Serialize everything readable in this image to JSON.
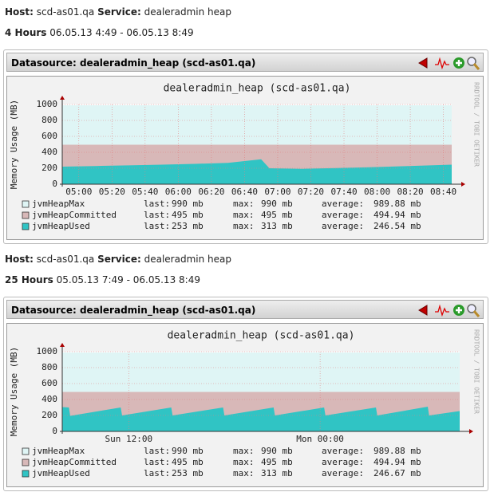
{
  "panels": [
    {
      "host_label": "Host:",
      "host": "scd-as01.qa",
      "service_label": "Service:",
      "service": "dealeradmin heap",
      "range_label": "4 Hours",
      "range": "06.05.13 4:49 - 06.05.13 8:49",
      "datasource": "Datasource: dealeradmin_heap (scd-as01.qa)"
    },
    {
      "host_label": "Host:",
      "host": "scd-as01.qa",
      "service_label": "Service:",
      "service": "dealeradmin heap",
      "range_label": "25 Hours",
      "range": "05.05.13 7:49 - 06.05.13 8:49",
      "datasource": "Datasource: dealeradmin_heap (scd-as01.qa)"
    }
  ],
  "chart_data": [
    {
      "type": "area",
      "title": "dealeradmin_heap (scd-as01.qa)",
      "ylabel": "Memory Usage (MB)",
      "watermark": "RRDTOOL / TOBI OETIKER",
      "x": [
        "04:50",
        "05:10",
        "05:30",
        "05:50",
        "06:10",
        "06:30",
        "06:50",
        "06:55",
        "07:15",
        "07:35",
        "07:55",
        "08:15",
        "08:45"
      ],
      "xlim": [
        "04:50",
        "08:45"
      ],
      "xticks": [
        "05:00",
        "05:20",
        "05:40",
        "06:00",
        "06:20",
        "06:40",
        "07:00",
        "07:20",
        "07:40",
        "08:00",
        "08:20",
        "08:40"
      ],
      "ylim": [
        0,
        1000
      ],
      "yticks": [
        0,
        200,
        400,
        600,
        800,
        1000
      ],
      "grid": true,
      "stat_labels": [
        "last:",
        "max:",
        "average:"
      ],
      "series": [
        {
          "name": "jvmHeapMax",
          "color": "#dff5f5",
          "values": [
            990,
            990,
            990,
            990,
            990,
            990,
            990,
            990,
            990,
            990,
            990,
            990,
            990
          ],
          "stats": [
            "990 mb",
            "990 mb",
            "989.88 mb"
          ]
        },
        {
          "name": "jvmHeapCommitted",
          "color": "#d8b8b8",
          "values": [
            495,
            495,
            495,
            495,
            495,
            495,
            495,
            495,
            495,
            495,
            495,
            495,
            495
          ],
          "stats": [
            "495 mb",
            "495 mb",
            "494.94 mb"
          ]
        },
        {
          "name": "jvmHeapUsed",
          "color": "#30c4c4",
          "values": [
            220,
            228,
            236,
            245,
            255,
            268,
            313,
            200,
            193,
            203,
            212,
            225,
            245
          ],
          "stats": [
            "253 mb",
            "313 mb",
            "246.54 mb"
          ]
        }
      ]
    },
    {
      "type": "area",
      "title": "dealeradmin_heap (scd-as01.qa)",
      "ylabel": "Memory Usage (MB)",
      "watermark": "RRDTOOL / TOBI OETIKER",
      "x": [
        "Sun 07:50",
        "Sun 08:15",
        "Sun 08:20",
        "Sun 11:30",
        "Sun 11:35",
        "Sun 14:40",
        "Sun 14:45",
        "Sun 17:55",
        "Sun 18:00",
        "Sun 21:05",
        "Sun 21:10",
        "Mon 00:15",
        "Mon 00:20",
        "Mon 03:30",
        "Mon 03:35",
        "Mon 06:45",
        "Mon 06:50",
        "Mon 08:45"
      ],
      "xlim": [
        "Sun 07:50",
        "Mon 08:45"
      ],
      "xticks": [
        "Sun 12:00",
        "Mon 00:00"
      ],
      "ylim": [
        0,
        1000
      ],
      "yticks": [
        0,
        200,
        400,
        600,
        800,
        1000
      ],
      "grid": true,
      "stat_labels": [
        "last:",
        "max:",
        "average:"
      ],
      "series": [
        {
          "name": "jvmHeapMax",
          "color": "#dff5f5",
          "values": [
            990,
            990,
            990,
            990,
            990,
            990,
            990,
            990,
            990,
            990,
            990,
            990,
            990,
            990,
            990,
            990,
            990,
            990
          ],
          "stats": [
            "990 mb",
            "990 mb",
            "989.88 mb"
          ]
        },
        {
          "name": "jvmHeapCommitted",
          "color": "#d8b8b8",
          "values": [
            495,
            495,
            495,
            495,
            495,
            495,
            495,
            495,
            495,
            495,
            495,
            495,
            495,
            495,
            495,
            495,
            495,
            495
          ],
          "stats": [
            "495 mb",
            "495 mb",
            "494.94 mb"
          ]
        },
        {
          "name": "jvmHeapUsed",
          "color": "#30c4c4",
          "values": [
            305,
            300,
            195,
            300,
            200,
            300,
            200,
            300,
            200,
            300,
            200,
            300,
            200,
            300,
            200,
            310,
            200,
            255
          ],
          "stats": [
            "253 mb",
            "313 mb",
            "246.67 mb"
          ]
        }
      ]
    }
  ]
}
